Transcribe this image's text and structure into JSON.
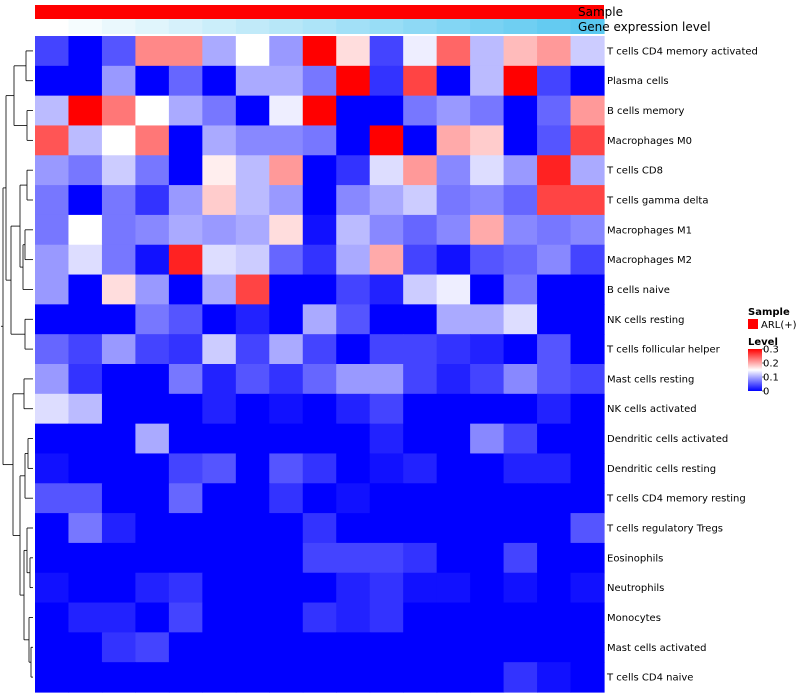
{
  "chart_data": {
    "type": "heatmap",
    "annotations": {
      "sample_label": "Sample",
      "sample_color": "#ff0000",
      "expression_label": "Gene expression level",
      "expression_colors": [
        "#ffffff",
        "#5ac8f0"
      ]
    },
    "rows": [
      "T cells CD4 memory activated",
      "Plasma cells",
      "B cells memory",
      "Macrophages M0",
      "T cells CD8",
      "T cells gamma delta",
      "Macrophages M1",
      "Macrophages M2",
      "B cells naive",
      "NK cells resting",
      "T cells follicular helper",
      "Mast cells resting",
      "NK cells activated",
      "Dendritic cells activated",
      "Dendritic cells resting",
      "T cells CD4 memory resting",
      "T cells regulatory  Tregs",
      "Eosinophils",
      "Neutrophils",
      "Monocytes",
      "Mast cells activated",
      "T cells CD4 naive"
    ],
    "values": [
      [
        0.04,
        0.0,
        0.05,
        0.22,
        0.22,
        0.1,
        0.15,
        0.09,
        0.3,
        0.17,
        0.04,
        0.14,
        0.24,
        0.11,
        0.19,
        0.21,
        0.12
      ],
      [
        0.0,
        0.0,
        0.09,
        0.0,
        0.06,
        0.0,
        0.1,
        0.1,
        0.07,
        0.3,
        0.03,
        0.26,
        0.0,
        0.11,
        0.3,
        0.04,
        0.0
      ],
      [
        0.11,
        0.3,
        0.23,
        0.15,
        0.1,
        0.07,
        0.0,
        0.14,
        0.3,
        0.0,
        0.0,
        0.07,
        0.09,
        0.07,
        0.0,
        0.06,
        0.21
      ],
      [
        0.25,
        0.11,
        0.15,
        0.23,
        0.0,
        0.1,
        0.08,
        0.08,
        0.07,
        0.0,
        0.3,
        0.0,
        0.2,
        0.18,
        0.0,
        0.05,
        0.26
      ],
      [
        0.09,
        0.07,
        0.12,
        0.07,
        0.0,
        0.16,
        0.11,
        0.21,
        0.0,
        0.03,
        0.13,
        0.21,
        0.08,
        0.13,
        0.09,
        0.28,
        0.1
      ],
      [
        0.07,
        0.0,
        0.07,
        0.03,
        0.09,
        0.18,
        0.11,
        0.09,
        0.0,
        0.08,
        0.1,
        0.12,
        0.07,
        0.08,
        0.06,
        0.26,
        0.26
      ],
      [
        0.07,
        0.15,
        0.07,
        0.08,
        0.1,
        0.09,
        0.1,
        0.17,
        0.01,
        0.11,
        0.08,
        0.06,
        0.08,
        0.2,
        0.08,
        0.07,
        0.08
      ],
      [
        0.09,
        0.13,
        0.07,
        0.01,
        0.28,
        0.13,
        0.12,
        0.06,
        0.03,
        0.1,
        0.2,
        0.04,
        0.01,
        0.05,
        0.06,
        0.08,
        0.04
      ],
      [
        0.09,
        0.0,
        0.17,
        0.09,
        0.0,
        0.1,
        0.26,
        0.0,
        0.0,
        0.04,
        0.02,
        0.12,
        0.14,
        0.0,
        0.07,
        0.0,
        0.0
      ],
      [
        0.0,
        0.0,
        0.0,
        0.07,
        0.05,
        0.0,
        0.02,
        0.0,
        0.1,
        0.05,
        0.0,
        0.0,
        0.1,
        0.1,
        0.13,
        0.0,
        0.0
      ],
      [
        0.06,
        0.04,
        0.09,
        0.04,
        0.03,
        0.12,
        0.04,
        0.1,
        0.04,
        0.0,
        0.04,
        0.04,
        0.03,
        0.02,
        0.0,
        0.05,
        0.0
      ],
      [
        0.09,
        0.03,
        0.0,
        0.0,
        0.07,
        0.02,
        0.05,
        0.03,
        0.06,
        0.09,
        0.09,
        0.04,
        0.02,
        0.04,
        0.08,
        0.05,
        0.04
      ],
      [
        0.13,
        0.11,
        0.0,
        0.0,
        0.0,
        0.02,
        0.0,
        0.01,
        0.0,
        0.02,
        0.04,
        0.0,
        0.0,
        0.0,
        0.0,
        0.02,
        0.0
      ],
      [
        0.0,
        0.0,
        0.0,
        0.1,
        0.0,
        0.0,
        0.0,
        0.0,
        0.0,
        0.0,
        0.02,
        0.0,
        0.0,
        0.08,
        0.04,
        0.0,
        0.0
      ],
      [
        0.01,
        0.0,
        0.0,
        0.0,
        0.04,
        0.05,
        0.0,
        0.05,
        0.03,
        0.0,
        0.01,
        0.02,
        0.0,
        0.0,
        0.02,
        0.02,
        0.0
      ],
      [
        0.05,
        0.05,
        0.0,
        0.0,
        0.06,
        0.0,
        0.0,
        0.03,
        0.0,
        0.01,
        0.0,
        0.0,
        0.0,
        0.0,
        0.0,
        0.0,
        0.0
      ],
      [
        0.0,
        0.07,
        0.02,
        0.0,
        0.0,
        0.0,
        0.0,
        0.0,
        0.03,
        0.0,
        0.0,
        0.0,
        0.0,
        0.0,
        0.0,
        0.0,
        0.05
      ],
      [
        0.0,
        0.0,
        0.0,
        0.0,
        0.0,
        0.0,
        0.0,
        0.0,
        0.04,
        0.04,
        0.04,
        0.03,
        0.0,
        0.0,
        0.04,
        0.0,
        0.0
      ],
      [
        0.01,
        0.0,
        0.0,
        0.02,
        0.03,
        0.0,
        0.0,
        0.0,
        0.0,
        0.02,
        0.03,
        0.01,
        0.01,
        0.0,
        0.01,
        0.0,
        0.01
      ],
      [
        0.0,
        0.02,
        0.02,
        0.0,
        0.04,
        0.0,
        0.0,
        0.0,
        0.03,
        0.02,
        0.03,
        0.0,
        0.0,
        0.0,
        0.0,
        0.0,
        0.0
      ],
      [
        0.0,
        0.0,
        0.03,
        0.04,
        0.0,
        0.0,
        0.0,
        0.0,
        0.0,
        0.0,
        0.0,
        0.0,
        0.0,
        0.0,
        0.0,
        0.0,
        0.0
      ],
      [
        0.0,
        0.0,
        0.0,
        0.0,
        0.0,
        0.0,
        0.0,
        0.0,
        0.0,
        0.0,
        0.0,
        0.0,
        0.0,
        0.0,
        0.03,
        0.01,
        0.0
      ]
    ],
    "color_scale": {
      "min": 0,
      "max": 0.3,
      "colors": [
        "#0000ff",
        "#ffffff",
        "#ff0000"
      ],
      "mid": 0.15
    },
    "legend": {
      "sample_title": "Sample",
      "sample_entry": "ARL(+)",
      "level_title": "Level",
      "level_ticks": [
        "0.3",
        "0.2",
        "0.1",
        "0"
      ],
      "level_tick_values": [
        0.3,
        0.2,
        0.1,
        0
      ]
    }
  }
}
